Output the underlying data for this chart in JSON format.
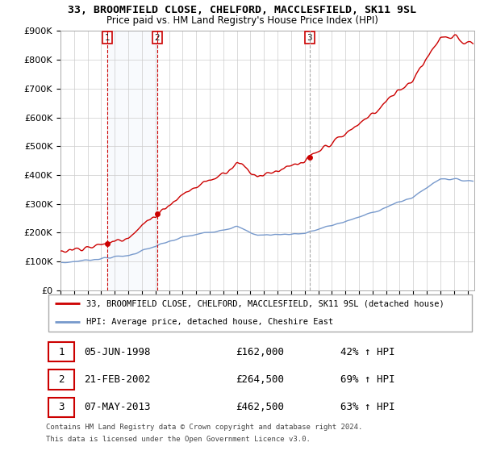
{
  "title": "33, BROOMFIELD CLOSE, CHELFORD, MACCLESFIELD, SK11 9SL",
  "subtitle": "Price paid vs. HM Land Registry's House Price Index (HPI)",
  "ylim": [
    0,
    900000
  ],
  "yticks": [
    0,
    100000,
    200000,
    300000,
    400000,
    500000,
    600000,
    700000,
    800000,
    900000
  ],
  "ytick_labels": [
    "£0",
    "£100K",
    "£200K",
    "£300K",
    "£400K",
    "£500K",
    "£600K",
    "£700K",
    "£800K",
    "£900K"
  ],
  "xmin": 1995.0,
  "xmax": 2025.5,
  "sales": [
    {
      "num": 1,
      "date": "05-JUN-1998",
      "year": 1998.44,
      "price": 162000,
      "pct": "42%"
    },
    {
      "num": 2,
      "date": "21-FEB-2002",
      "year": 2002.13,
      "price": 264500,
      "pct": "69%"
    },
    {
      "num": 3,
      "date": "07-MAY-2013",
      "year": 2013.35,
      "price": 462500,
      "pct": "63%"
    }
  ],
  "red_line_color": "#cc0000",
  "blue_line_color": "#7799cc",
  "shade_color": "#dde8f5",
  "marker_color": "#cc0000",
  "grid_color": "#cccccc",
  "legend_label_red": "33, BROOMFIELD CLOSE, CHELFORD, MACCLESFIELD, SK11 9SL (detached house)",
  "legend_label_blue": "HPI: Average price, detached house, Cheshire East",
  "footer1": "Contains HM Land Registry data © Crown copyright and database right 2024.",
  "footer2": "This data is licensed under the Open Government Licence v3.0."
}
